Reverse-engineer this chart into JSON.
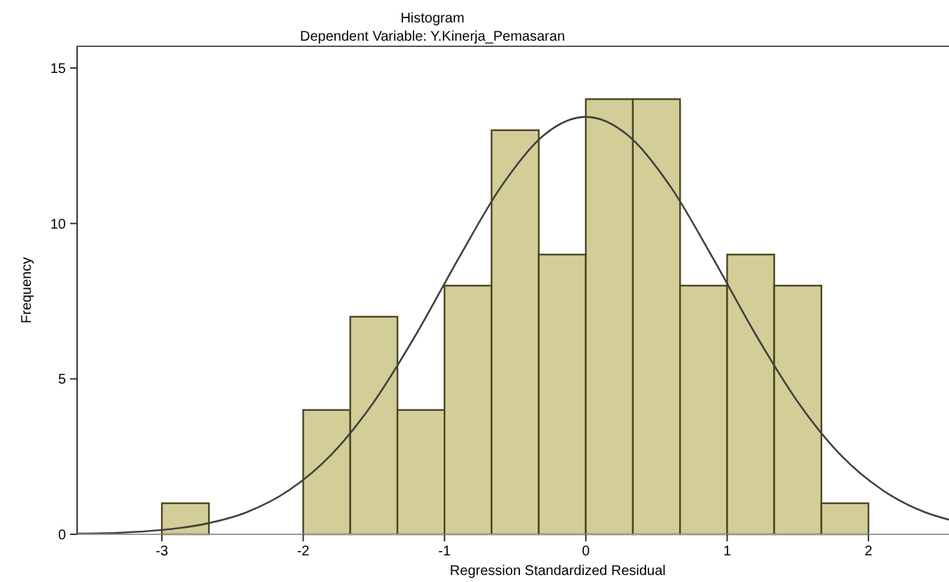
{
  "chart_data": {
    "type": "histogram",
    "title": "Histogram",
    "subtitle": "Dependent Variable: Y.Kinerja_Pemasaran",
    "xlabel": "Regression Standardized Residual",
    "ylabel": "Frequency",
    "bins": [
      -3,
      -2.667,
      -2.333,
      -2,
      -1.667,
      -1.333,
      -1,
      -0.667,
      -0.333,
      0,
      0.333,
      0.667,
      1,
      1.333,
      1.667,
      2
    ],
    "values": [
      1,
      0,
      0,
      4,
      7,
      4,
      8,
      13,
      9,
      14,
      14,
      8,
      9,
      8,
      1
    ],
    "color": "#d3cd97",
    "series": [
      {
        "type": "line",
        "color": "#404040",
        "x": [
          -3.6,
          -3.3,
          -3.0,
          -2.7,
          -2.4,
          -2.1,
          -1.8,
          -1.5,
          -1.2,
          -0.9,
          -0.6,
          -0.3,
          0,
          0.3,
          0.6,
          0.9,
          1.2,
          1.5,
          1.8,
          2.1,
          2.4,
          2.57
        ],
        "values": [
          0.02,
          0.05,
          0.14,
          0.33,
          0.71,
          1.42,
          2.57,
          4.26,
          6.44,
          8.88,
          11.18,
          12.83,
          13.43,
          12.83,
          11.18,
          8.88,
          6.44,
          4.26,
          2.57,
          1.42,
          0.71,
          0.47
        ]
      }
    ],
    "xlim": [
      -3.6,
      2.57
    ],
    "xticks": [
      -3,
      -2,
      -1,
      0,
      1,
      2
    ],
    "ylim": [
      0,
      15.7
    ],
    "yticks": [
      0,
      5,
      10,
      15
    ],
    "grid": false
  }
}
